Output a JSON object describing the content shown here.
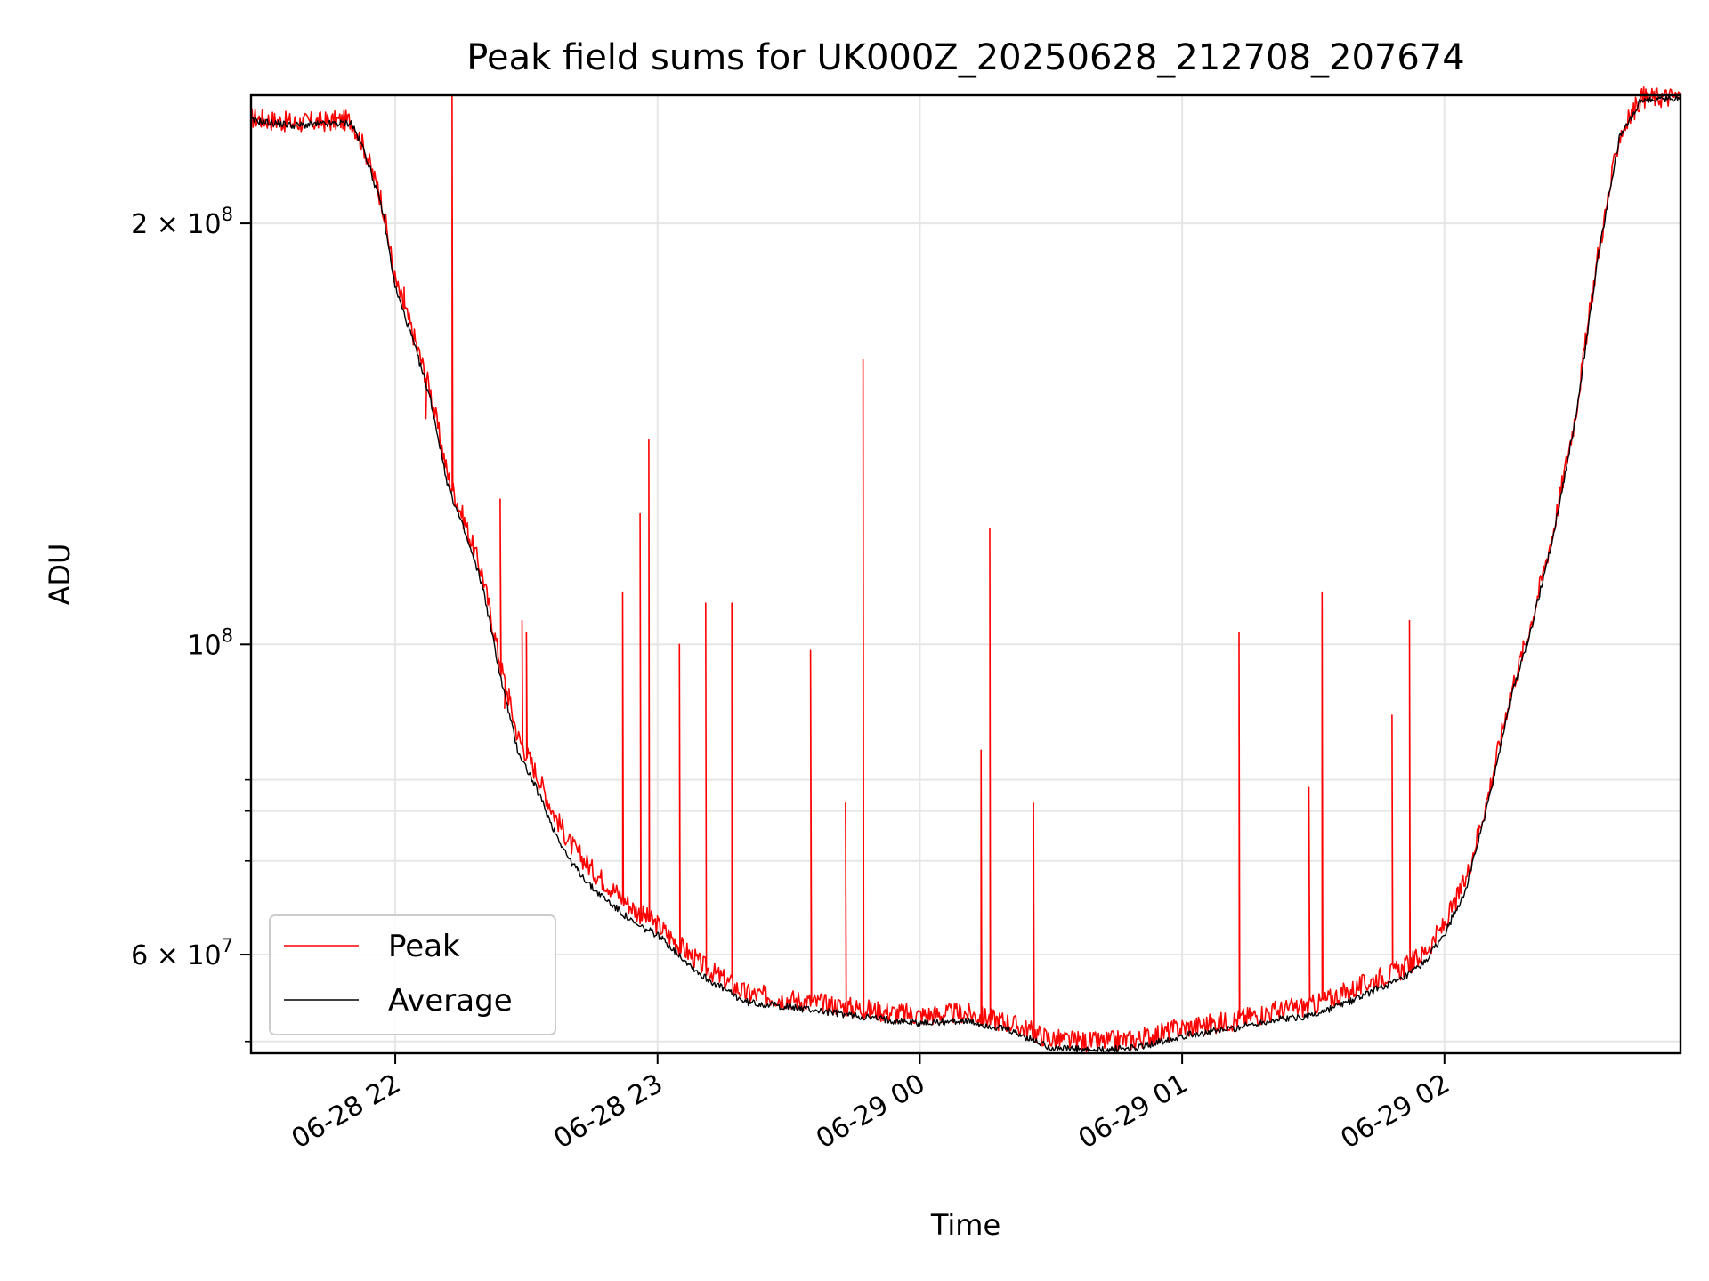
{
  "chart_data": {
    "type": "line",
    "title": "Peak field sums for UK000Z_20250628_212708_207674",
    "xlabel": "Time",
    "ylabel": "ADU",
    "y_scale": "log",
    "x_range": [
      "2025-06-28 21:27",
      "2025-06-29 02:54"
    ],
    "ylim": [
      51000000,
      247000000
    ],
    "grid": true,
    "legend_position": "lower-left",
    "colors": {
      "peak": "#ff0000",
      "average": "#000000",
      "grid": "#e6e6e6"
    },
    "x_ticks": [
      {
        "value": "2025-06-28 22:00",
        "label": "06-28 22"
      },
      {
        "value": "2025-06-28 23:00",
        "label": "06-28 23"
      },
      {
        "value": "2025-06-29 00:00",
        "label": "06-29 00"
      },
      {
        "value": "2025-06-29 01:00",
        "label": "06-29 01"
      },
      {
        "value": "2025-06-29 02:00",
        "label": "06-29 02"
      }
    ],
    "y_ticks": [
      {
        "value": 60000000,
        "mantissa": "6",
        "exponent": "7"
      },
      {
        "value": 100000000,
        "mantissa": "",
        "exponent": "8"
      },
      {
        "value": 200000000,
        "mantissa": "2",
        "exponent": "8"
      }
    ],
    "y_minor_ticks": [
      52000000,
      70000000,
      76000000,
      80000000
    ],
    "series": [
      {
        "name": "Average",
        "x": [
          "2025-06-28 21:27",
          "2025-06-28 21:37",
          "2025-06-28 21:50",
          "2025-06-28 21:53",
          "2025-06-28 21:57",
          "2025-06-28 22:00",
          "2025-06-28 22:04",
          "2025-06-28 22:08",
          "2025-06-28 22:12",
          "2025-06-28 22:16",
          "2025-06-28 22:20",
          "2025-06-28 22:24",
          "2025-06-28 22:28",
          "2025-06-28 22:33",
          "2025-06-28 22:36",
          "2025-06-28 22:40",
          "2025-06-28 22:45",
          "2025-06-28 22:55",
          "2025-06-28 23:00",
          "2025-06-28 23:10",
          "2025-06-28 23:20",
          "2025-06-28 23:35",
          "2025-06-28 23:50",
          "2025-06-29 00:00",
          "2025-06-29 00:10",
          "2025-06-29 00:20",
          "2025-06-29 00:30",
          "2025-06-29 00:40",
          "2025-06-29 00:50",
          "2025-06-29 01:00",
          "2025-06-29 01:10",
          "2025-06-29 01:20",
          "2025-06-29 01:30",
          "2025-06-29 01:40",
          "2025-06-29 01:45",
          "2025-06-29 01:50",
          "2025-06-29 01:55",
          "2025-06-29 02:00",
          "2025-06-29 02:05",
          "2025-06-29 02:10",
          "2025-06-29 02:15",
          "2025-06-29 02:20",
          "2025-06-29 02:25",
          "2025-06-29 02:30",
          "2025-06-29 02:35",
          "2025-06-29 02:40",
          "2025-06-29 02:45",
          "2025-06-29 02:54"
        ],
        "values": [
          237000000,
          235000000,
          236000000,
          225000000,
          205000000,
          180000000,
          165000000,
          150000000,
          130000000,
          120000000,
          110000000,
          95000000,
          84000000,
          78000000,
          74000000,
          70000000,
          67000000,
          63000000,
          62000000,
          58000000,
          55500000,
          54800000,
          54000000,
          53600000,
          53800000,
          53000000,
          51500000,
          51200000,
          51500000,
          52500000,
          53000000,
          53800000,
          54300000,
          55800000,
          56800000,
          57500000,
          59000000,
          62000000,
          67000000,
          77000000,
          91000000,
          103000000,
          120000000,
          145000000,
          188000000,
          230000000,
          245000000,
          246000000
        ]
      },
      {
        "name": "Peak",
        "x": [
          "2025-06-28 21:27",
          "2025-06-28 21:37",
          "2025-06-28 21:50",
          "2025-06-28 21:53",
          "2025-06-28 21:57",
          "2025-06-28 22:00",
          "2025-06-28 22:04",
          "2025-06-28 22:08",
          "2025-06-28 22:12",
          "2025-06-28 22:16",
          "2025-06-28 22:20",
          "2025-06-28 22:24",
          "2025-06-28 22:28",
          "2025-06-28 22:33",
          "2025-06-28 22:36",
          "2025-06-28 22:40",
          "2025-06-28 22:45",
          "2025-06-28 22:55",
          "2025-06-28 23:00",
          "2025-06-28 23:10",
          "2025-06-28 23:20",
          "2025-06-28 23:35",
          "2025-06-28 23:50",
          "2025-06-29 00:00",
          "2025-06-29 00:10",
          "2025-06-29 00:20",
          "2025-06-29 00:30",
          "2025-06-29 00:40",
          "2025-06-29 00:50",
          "2025-06-29 01:00",
          "2025-06-29 01:10",
          "2025-06-29 01:20",
          "2025-06-29 01:30",
          "2025-06-29 01:40",
          "2025-06-29 01:45",
          "2025-06-29 01:50",
          "2025-06-29 01:55",
          "2025-06-29 02:00",
          "2025-06-29 02:05",
          "2025-06-29 02:10",
          "2025-06-29 02:15",
          "2025-06-29 02:20",
          "2025-06-29 02:25",
          "2025-06-29 02:30",
          "2025-06-29 02:35",
          "2025-06-29 02:40",
          "2025-06-29 02:45",
          "2025-06-29 02:54"
        ],
        "values": [
          238000000,
          236000000,
          237000000,
          226000000,
          207000000,
          182000000,
          167000000,
          152000000,
          132000000,
          122000000,
          112000000,
          97000000,
          86000000,
          80000000,
          76000000,
          72000000,
          69000000,
          64500000,
          63000000,
          59000000,
          56300000,
          55500000,
          54700000,
          54300000,
          54500000,
          53700000,
          52200000,
          51900000,
          52200000,
          53200000,
          53700000,
          54600000,
          55200000,
          56800000,
          57800000,
          58500000,
          60000000,
          63000000,
          68000000,
          78000000,
          92000000,
          104000000,
          121000000,
          146000000,
          189000000,
          231000000,
          246000000,
          246500000
        ],
        "spikes": [
          {
            "x": "2025-06-28 21:56",
            "value": 214000000
          },
          {
            "x": "2025-06-28 22:02",
            "value": 180000000
          },
          {
            "x": "2025-06-28 22:07",
            "value": 145000000
          },
          {
            "x": "2025-06-28 22:13",
            "value": 247000000
          },
          {
            "x": "2025-06-28 22:24",
            "value": 127000000
          },
          {
            "x": "2025-06-28 22:25",
            "value": 90000000
          },
          {
            "x": "2025-06-28 22:26",
            "value": 93000000
          },
          {
            "x": "2025-06-28 22:29",
            "value": 104000000
          },
          {
            "x": "2025-06-28 22:30",
            "value": 102000000
          },
          {
            "x": "2025-06-28 22:52",
            "value": 109000000
          },
          {
            "x": "2025-06-28 22:56",
            "value": 124000000
          },
          {
            "x": "2025-06-28 22:58",
            "value": 140000000
          },
          {
            "x": "2025-06-28 23:05",
            "value": 100000000
          },
          {
            "x": "2025-06-28 23:11",
            "value": 107000000
          },
          {
            "x": "2025-06-28 23:17",
            "value": 107000000
          },
          {
            "x": "2025-06-28 23:35",
            "value": 99000000
          },
          {
            "x": "2025-06-28 23:43",
            "value": 77000000
          },
          {
            "x": "2025-06-28 23:47",
            "value": 160000000
          },
          {
            "x": "2025-06-29 00:14",
            "value": 84000000
          },
          {
            "x": "2025-06-29 00:16",
            "value": 121000000
          },
          {
            "x": "2025-06-29 00:26",
            "value": 77000000
          },
          {
            "x": "2025-06-29 01:13",
            "value": 102000000
          },
          {
            "x": "2025-06-29 01:29",
            "value": 79000000
          },
          {
            "x": "2025-06-29 01:32",
            "value": 109000000
          },
          {
            "x": "2025-06-29 01:48",
            "value": 89000000
          },
          {
            "x": "2025-06-29 01:52",
            "value": 104000000
          }
        ]
      }
    ]
  }
}
